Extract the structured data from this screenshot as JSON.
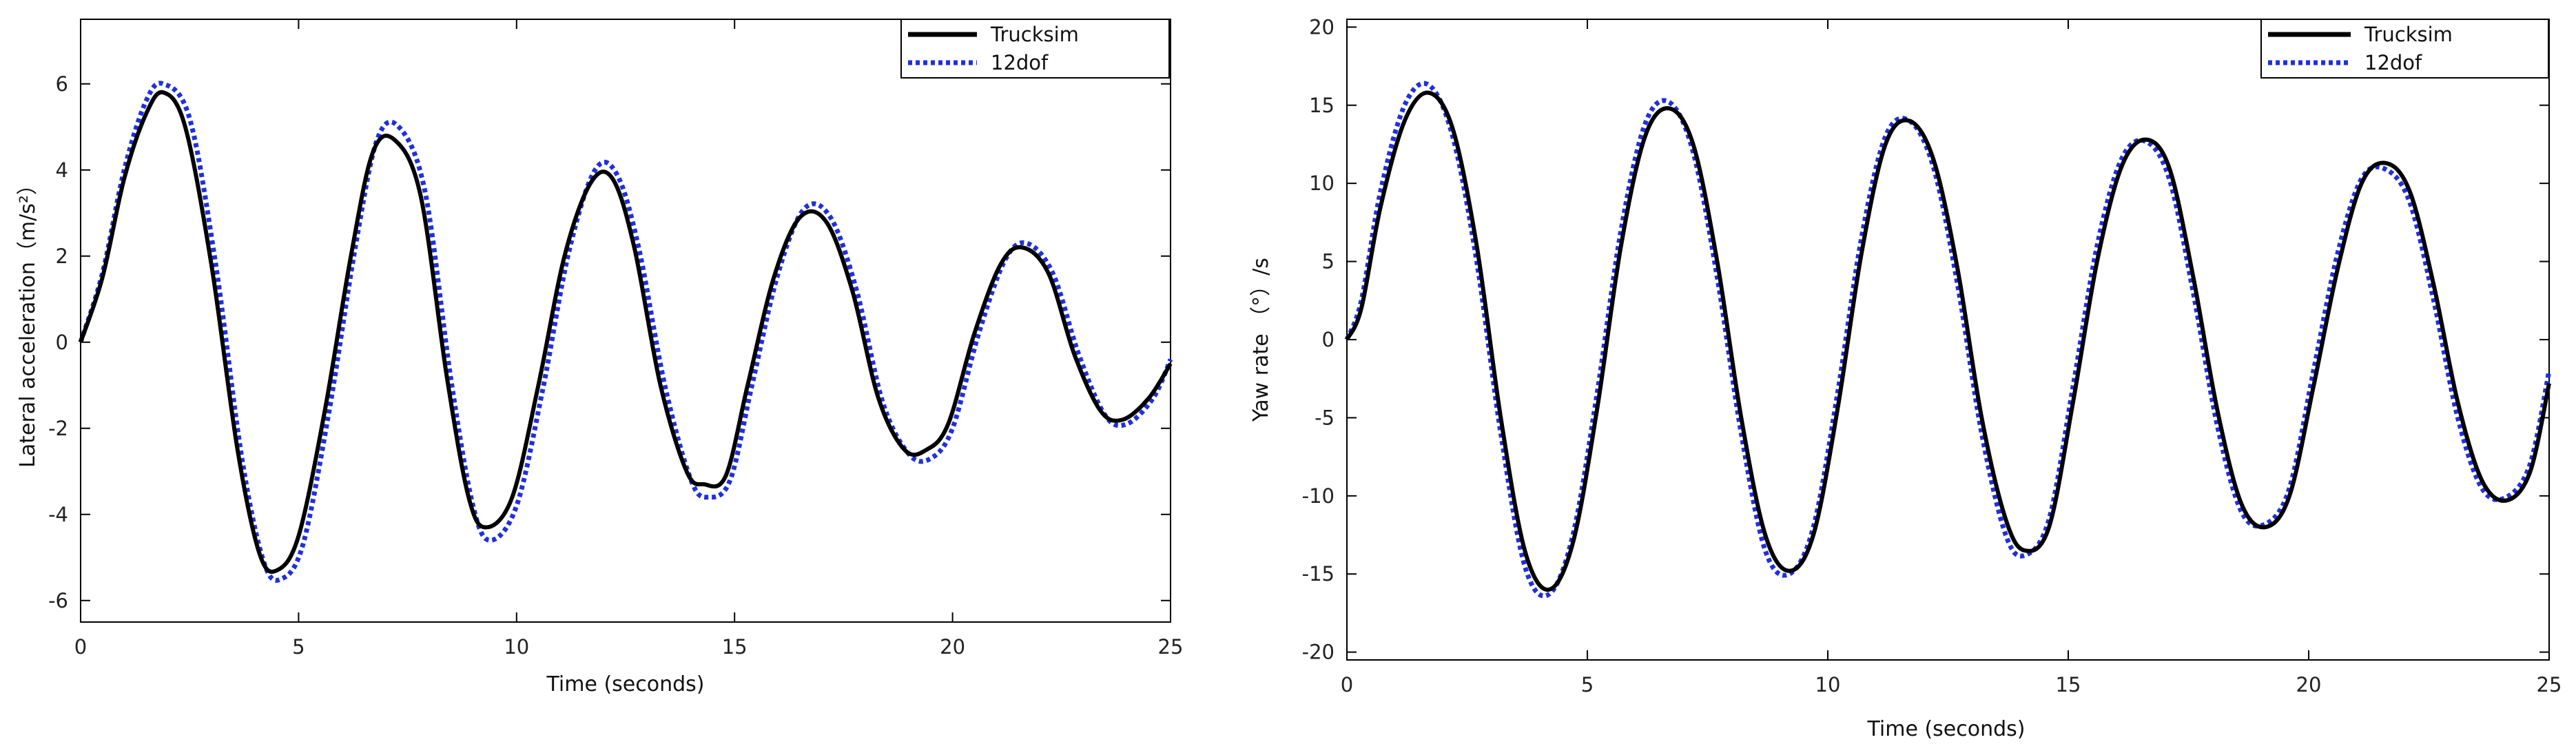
{
  "chart_data": [
    {
      "type": "line",
      "xlabel": "Time (seconds)",
      "ylabel": "Lateral acceleration（m/s²）",
      "xlim": [
        0,
        25
      ],
      "ylim": [
        -6.5,
        7.5
      ],
      "xticks": [
        0,
        5,
        10,
        15,
        20,
        25
      ],
      "yticks": [
        -6,
        -4,
        -2,
        0,
        2,
        4,
        6
      ],
      "xtick_labels": [
        "0",
        "5",
        "10",
        "15",
        "20",
        "25"
      ],
      "ytick_labels": [
        "-6",
        "-4",
        "-2",
        "0",
        "2",
        "4",
        "6"
      ],
      "grid": false,
      "legend_position": "top-right",
      "series": [
        {
          "name": "Trucksim",
          "color": "#000000",
          "style": "solid",
          "x": [
            0,
            0.5,
            1.0,
            1.5,
            1.9,
            2.4,
            3.0,
            3.6,
            4.1,
            4.5,
            5.0,
            5.6,
            6.2,
            6.7,
            7.2,
            7.8,
            8.4,
            8.9,
            9.3,
            9.9,
            10.5,
            11.1,
            11.7,
            12.2,
            12.7,
            13.3,
            13.9,
            14.3,
            14.8,
            15.3,
            15.9,
            16.5,
            17.1,
            17.7,
            18.3,
            18.9,
            19.4,
            19.9,
            20.5,
            21.1,
            21.6,
            22.2,
            22.8,
            23.4,
            23.9,
            24.5,
            25.0
          ],
          "y": [
            0.0,
            1.5,
            3.8,
            5.3,
            5.8,
            5.0,
            1.8,
            -2.5,
            -4.9,
            -5.3,
            -4.5,
            -1.6,
            2.0,
            4.4,
            4.7,
            3.4,
            -0.8,
            -3.6,
            -4.3,
            -3.6,
            -1.0,
            2.0,
            3.7,
            3.8,
            2.2,
            -1.0,
            -3.0,
            -3.3,
            -3.1,
            -1.0,
            1.5,
            2.9,
            2.8,
            1.2,
            -1.3,
            -2.5,
            -2.5,
            -1.9,
            0.2,
            1.8,
            2.2,
            1.6,
            -0.3,
            -1.6,
            -1.8,
            -1.3,
            -0.5
          ]
        },
        {
          "name": "12dof",
          "color": "#1f2fe0",
          "style": "dotted",
          "x": [
            0,
            0.5,
            1.0,
            1.5,
            1.9,
            2.5,
            3.1,
            3.7,
            4.2,
            4.6,
            5.1,
            5.7,
            6.3,
            6.8,
            7.3,
            7.9,
            8.5,
            9.0,
            9.4,
            10.0,
            10.6,
            11.2,
            11.8,
            12.3,
            12.8,
            13.4,
            14.0,
            14.4,
            14.9,
            15.4,
            16.0,
            16.6,
            17.2,
            17.8,
            18.4,
            19.0,
            19.5,
            20.0,
            20.6,
            21.2,
            21.7,
            22.3,
            22.9,
            23.5,
            24.0,
            24.6,
            25.0
          ],
          "y": [
            0.0,
            1.6,
            4.0,
            5.6,
            6.0,
            5.2,
            1.8,
            -2.7,
            -5.1,
            -5.5,
            -4.7,
            -1.6,
            2.2,
            4.7,
            5.0,
            3.5,
            -0.9,
            -3.8,
            -4.6,
            -3.8,
            -1.1,
            2.1,
            4.0,
            3.9,
            2.2,
            -1.0,
            -3.2,
            -3.6,
            -3.2,
            -1.0,
            1.6,
            3.1,
            2.9,
            1.2,
            -1.4,
            -2.6,
            -2.7,
            -2.0,
            0.2,
            1.9,
            2.3,
            1.6,
            -0.3,
            -1.7,
            -1.9,
            -1.3,
            -0.4
          ]
        }
      ]
    },
    {
      "type": "line",
      "xlabel": "Time (seconds)",
      "ylabel": "Yaw rate （°）/s",
      "xlim": [
        0,
        25
      ],
      "ylim": [
        -20.5,
        20.5
      ],
      "xticks": [
        0,
        5,
        10,
        15,
        20,
        25
      ],
      "yticks": [
        -20,
        -15,
        -10,
        -5,
        0,
        5,
        10,
        15,
        20
      ],
      "xtick_labels": [
        "0",
        "5",
        "10",
        "15",
        "20",
        "25"
      ],
      "ytick_labels": [
        "-20",
        "-15",
        "-10",
        "-5",
        "0",
        "5",
        "10",
        "15",
        "20"
      ],
      "grid": false,
      "legend_position": "top-right",
      "series": [
        {
          "name": "Trucksim",
          "color": "#000000",
          "style": "solid",
          "x": [
            0,
            0.3,
            0.7,
            1.2,
            1.7,
            2.2,
            2.7,
            3.2,
            3.7,
            4.2,
            4.7,
            5.2,
            5.7,
            6.2,
            6.7,
            7.2,
            7.7,
            8.2,
            8.7,
            9.2,
            9.7,
            10.2,
            10.7,
            11.2,
            11.7,
            12.2,
            12.7,
            13.2,
            13.7,
            14.1,
            14.6,
            15.1,
            15.6,
            16.1,
            16.6,
            17.1,
            17.6,
            18.1,
            18.6,
            19.1,
            19.6,
            20.1,
            20.6,
            21.1,
            21.6,
            22.1,
            22.6,
            23.1,
            23.6,
            24.1,
            24.6,
            25.0
          ],
          "y": [
            0.0,
            2.0,
            8.5,
            14.0,
            15.8,
            13.5,
            6.0,
            -5.0,
            -13.5,
            -16.0,
            -13.0,
            -4.5,
            6.0,
            13.0,
            14.8,
            12.5,
            5.0,
            -5.0,
            -12.5,
            -14.8,
            -12.5,
            -4.5,
            5.5,
            12.5,
            14.0,
            11.5,
            4.5,
            -5.0,
            -11.5,
            -13.5,
            -12.0,
            -4.0,
            5.0,
            11.0,
            12.8,
            11.0,
            4.0,
            -4.5,
            -10.5,
            -12.0,
            -10.0,
            -3.0,
            4.5,
            10.0,
            11.3,
            9.5,
            3.5,
            -4.0,
            -9.0,
            -10.3,
            -8.5,
            -2.8
          ]
        },
        {
          "name": "12dof",
          "color": "#1f2fe0",
          "style": "dotted",
          "x": [
            0,
            0.3,
            0.7,
            1.2,
            1.7,
            2.2,
            2.7,
            3.2,
            3.7,
            4.2,
            4.7,
            5.2,
            5.7,
            6.2,
            6.7,
            7.2,
            7.7,
            8.2,
            8.7,
            9.2,
            9.7,
            10.2,
            10.7,
            11.2,
            11.7,
            12.2,
            12.7,
            13.2,
            13.7,
            14.1,
            14.6,
            15.1,
            15.6,
            16.1,
            16.6,
            17.1,
            17.6,
            18.1,
            18.6,
            19.1,
            19.6,
            20.1,
            20.6,
            21.1,
            21.6,
            22.1,
            22.6,
            23.1,
            23.6,
            24.1,
            24.6,
            25.0
          ],
          "y": [
            0.0,
            2.5,
            9.5,
            15.0,
            16.3,
            13.0,
            5.0,
            -6.0,
            -14.5,
            -16.3,
            -12.5,
            -3.5,
            7.0,
            13.8,
            15.2,
            12.0,
            4.0,
            -6.0,
            -13.5,
            -15.0,
            -12.0,
            -3.5,
            6.5,
            13.0,
            14.0,
            11.0,
            3.5,
            -6.0,
            -12.5,
            -13.8,
            -11.5,
            -3.0,
            6.0,
            11.5,
            12.7,
            10.3,
            3.0,
            -5.5,
            -11.0,
            -11.8,
            -9.5,
            -2.0,
            5.5,
            10.3,
            10.9,
            8.8,
            2.5,
            -5.0,
            -9.5,
            -10.1,
            -8.0,
            -2.0
          ]
        }
      ]
    }
  ],
  "legend": {
    "series_1_label": "Trucksim",
    "series_2_label": "12dof"
  }
}
